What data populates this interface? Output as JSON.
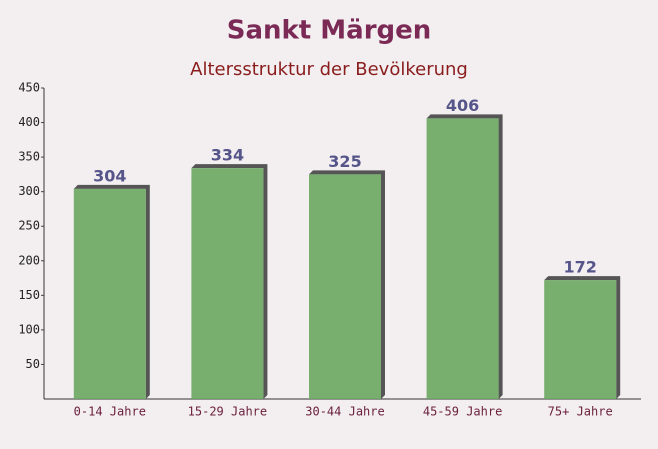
{
  "chart_data": {
    "type": "bar",
    "title": "Sankt Märgen",
    "subtitle": "Altersstruktur der Bevölkerung",
    "categories": [
      "0-14 Jahre",
      "15-29 Jahre",
      "30-44 Jahre",
      "45-59 Jahre",
      "75+ Jahre"
    ],
    "values": [
      304,
      334,
      325,
      406,
      172
    ],
    "color": "#6aa760",
    "ylim": [
      0,
      450
    ],
    "yticks": [
      50,
      100,
      150,
      200,
      250,
      300,
      350,
      400,
      450
    ],
    "grid": false
  }
}
